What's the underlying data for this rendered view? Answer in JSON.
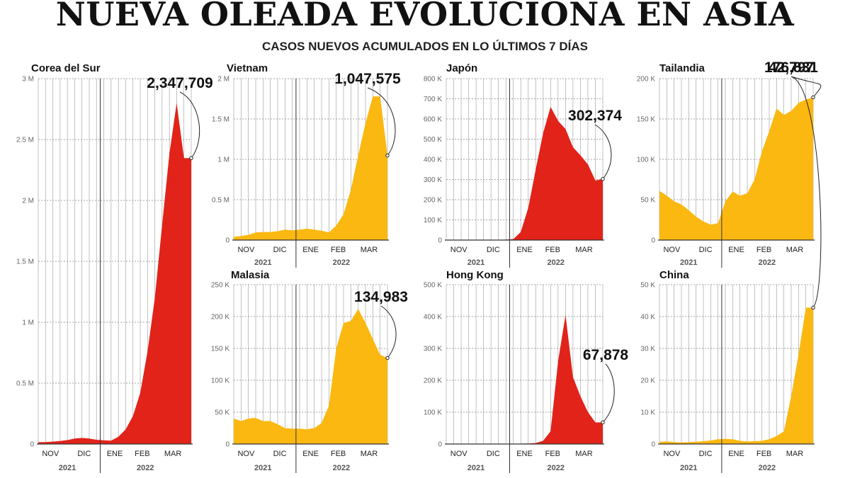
{
  "header": {
    "title": "NUEVA OLEADA EVOLUCIONA EN ASIA",
    "subtitle": "CASOS NUEVOS ACUMULADOS EN LO ÚLTIMOS 7 DÍAS"
  },
  "colors": {
    "red": "#e1231a",
    "yellow": "#fbb811",
    "grid": "#9a9a9a",
    "axis": "#333333"
  },
  "chart_data": [
    {
      "type": "area",
      "country": "Corea del Sur",
      "color": "red",
      "ylim": [
        0,
        3000000
      ],
      "yticks": [
        0,
        500000,
        1000000,
        1500000,
        2000000,
        2500000,
        3000000
      ],
      "ytick_labels": [
        "0",
        "0.5 M",
        "1 M",
        "1.5 M",
        "2 M",
        "2.5 M",
        "3 M"
      ],
      "months": [
        "NOV",
        "DIC",
        "ENE",
        "FEB",
        "MAR"
      ],
      "years": [
        "2021",
        "2022"
      ],
      "x_weeks": [
        0,
        1,
        2,
        3,
        4,
        5,
        6,
        7,
        8,
        9,
        10,
        11,
        12,
        13,
        14,
        15,
        16,
        17,
        18,
        19,
        20,
        21
      ],
      "values": [
        15000,
        16000,
        20000,
        25000,
        32000,
        45000,
        50000,
        45000,
        35000,
        30000,
        28000,
        60000,
        120000,
        230000,
        420000,
        760000,
        1200000,
        1800000,
        2380000,
        2800000,
        2347709,
        2347709
      ],
      "callout": "2,347,709",
      "callout_value": 2347709
    },
    {
      "type": "area",
      "country": "Vietnam",
      "color": "yellow",
      "ylim": [
        0,
        2000000
      ],
      "yticks": [
        0,
        500000,
        1000000,
        1500000,
        2000000
      ],
      "ytick_labels": [
        "0",
        "0.5 M",
        "1 M",
        "1.5 M",
        "2 M"
      ],
      "months": [
        "NOV",
        "DIC",
        "ENE",
        "FEB",
        "MAR"
      ],
      "years": [
        "2021",
        "2022"
      ],
      "values": [
        40000,
        50000,
        65000,
        95000,
        100000,
        100000,
        110000,
        130000,
        120000,
        130000,
        140000,
        130000,
        115000,
        95000,
        180000,
        320000,
        620000,
        1050000,
        1450000,
        1780000,
        1780000,
        1047575
      ],
      "callout": "1,047,575",
      "callout_value": 1047575
    },
    {
      "type": "area",
      "country": "Japón",
      "color": "red",
      "ylim": [
        0,
        800000
      ],
      "yticks": [
        0,
        100000,
        200000,
        300000,
        400000,
        500000,
        600000,
        700000,
        800000
      ],
      "ytick_labels": [
        "0",
        "100 K",
        "200 K",
        "300 K",
        "400 K",
        "500 K",
        "600 K",
        "700 K",
        "800 K"
      ],
      "months": [
        "NOV",
        "DIC",
        "ENE",
        "FEB",
        "MAR"
      ],
      "years": [
        "2021",
        "2022"
      ],
      "values": [
        1000,
        1000,
        1000,
        1000,
        1000,
        1000,
        1000,
        1000,
        2000,
        5000,
        40000,
        160000,
        350000,
        530000,
        660000,
        590000,
        550000,
        460000,
        420000,
        375000,
        295000,
        302374
      ],
      "callout": "302,374",
      "callout_value": 302374
    },
    {
      "type": "area",
      "country": "Tailandia",
      "color": "yellow",
      "ylim": [
        0,
        200000
      ],
      "yticks": [
        0,
        50000,
        100000,
        150000,
        200000
      ],
      "ytick_labels": [
        "0",
        "50 K",
        "100 K",
        "150 K",
        "200 K"
      ],
      "months": [
        "NOV",
        "DIC",
        "ENE",
        "FEB",
        "MAR"
      ],
      "years": [
        "2021",
        "2022"
      ],
      "values": [
        61000,
        55000,
        48000,
        44000,
        37000,
        29000,
        23000,
        19000,
        21000,
        48000,
        60000,
        55000,
        58000,
        75000,
        110000,
        135000,
        163000,
        155000,
        160000,
        170000,
        174000,
        176831
      ],
      "callout": "176,831",
      "callout_value": 176831
    },
    {
      "type": "area",
      "country": "Malasia",
      "color": "yellow",
      "ylim": [
        0,
        250000
      ],
      "yticks": [
        0,
        50000,
        100000,
        150000,
        200000,
        250000
      ],
      "ytick_labels": [
        "0",
        "50 K",
        "100 K",
        "150 K",
        "200 K",
        "250 K"
      ],
      "months": [
        "NOV",
        "DIC",
        "ENE",
        "FEB",
        "MAR"
      ],
      "years": [
        "2021",
        "2022"
      ],
      "values": [
        40000,
        36000,
        40000,
        41000,
        36000,
        36000,
        31000,
        25000,
        24000,
        24000,
        23000,
        25000,
        33000,
        60000,
        150000,
        190000,
        193000,
        212000,
        190000,
        165000,
        140000,
        134983
      ],
      "callout": "134,983",
      "callout_value": 134983
    },
    {
      "type": "area",
      "country": "Hong Kong",
      "color": "red",
      "ylim": [
        0,
        500000
      ],
      "yticks": [
        0,
        100000,
        200000,
        300000,
        400000,
        500000
      ],
      "ytick_labels": [
        "0",
        "100 K",
        "200 K",
        "300 K",
        "400 K",
        "500 K"
      ],
      "months": [
        "NOV",
        "DIC",
        "ENE",
        "FEB",
        "MAR"
      ],
      "years": [
        "2021",
        "2022"
      ],
      "values": [
        100,
        100,
        100,
        100,
        100,
        100,
        100,
        100,
        200,
        500,
        1000,
        1500,
        3000,
        10000,
        40000,
        260000,
        405000,
        210000,
        150000,
        100000,
        67878,
        67878
      ],
      "callout": "67,878",
      "callout_value": 67878
    },
    {
      "type": "area",
      "country": "China",
      "color": "yellow",
      "ylim": [
        0,
        50000
      ],
      "yticks": [
        0,
        10000,
        20000,
        30000,
        40000,
        50000
      ],
      "ytick_labels": [
        "0",
        "10 K",
        "20 K",
        "30 K",
        "40 K",
        "50 K"
      ],
      "months": [
        "NOV",
        "DIC",
        "ENE",
        "FEB",
        "MAR"
      ],
      "years": [
        "2021",
        "2022"
      ],
      "values": [
        700,
        800,
        600,
        500,
        600,
        700,
        900,
        1100,
        1500,
        1600,
        1500,
        1000,
        800,
        900,
        1000,
        1500,
        2500,
        4000,
        15000,
        28000,
        42797,
        42797
      ],
      "callout": "42,797",
      "callout_value": 42797
    }
  ]
}
